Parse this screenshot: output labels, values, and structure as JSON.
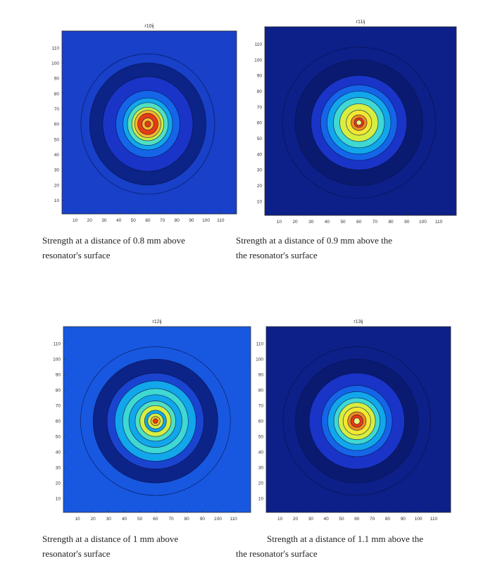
{
  "chart_data": [
    {
      "type": "heatmap",
      "title": "r10ij",
      "xticks": [
        10,
        20,
        30,
        40,
        50,
        60,
        70,
        80,
        90,
        100,
        110
      ],
      "yticks": [
        10,
        20,
        30,
        40,
        50,
        60,
        70,
        80,
        90,
        100,
        110
      ],
      "xlim": [
        1,
        121
      ],
      "ylim": [
        1,
        121
      ],
      "center": [
        60,
        60
      ],
      "levels": [
        {
          "radius": 46,
          "color": "#1840c8"
        },
        {
          "radius": 40,
          "color": "#0c2388"
        },
        {
          "radius": 31,
          "color": "#1a34c8"
        },
        {
          "radius": 22,
          "color": "#1565e8"
        },
        {
          "radius": 17,
          "color": "#12a6ea"
        },
        {
          "radius": 14,
          "color": "#50e0c0"
        },
        {
          "radius": 11,
          "color": "#c8ec48"
        },
        {
          "radius": 9,
          "color": "#f6b82a"
        },
        {
          "radius": 7,
          "color": "#e93a12"
        },
        {
          "radius": 4,
          "color": "#f6b82a"
        },
        {
          "radius": 2,
          "color": "#e93a12"
        }
      ]
    },
    {
      "type": "heatmap",
      "title": "r11ij",
      "xticks": [
        10,
        20,
        30,
        40,
        50,
        60,
        70,
        80,
        90,
        100,
        110
      ],
      "yticks": [
        10,
        20,
        30,
        40,
        50,
        60,
        70,
        80,
        90,
        100,
        110
      ],
      "xlim": [
        1,
        121
      ],
      "ylim": [
        1,
        121
      ],
      "center": [
        60,
        60
      ],
      "levels": [
        {
          "radius": 48,
          "color": "#0d1f88"
        },
        {
          "radius": 40,
          "color": "#0a1a70"
        },
        {
          "radius": 30,
          "color": "#1a34c8"
        },
        {
          "radius": 24,
          "color": "#1565e8"
        },
        {
          "radius": 20,
          "color": "#12a6ea"
        },
        {
          "radius": 16,
          "color": "#3fd8d2"
        },
        {
          "radius": 12,
          "color": "#d6ee40"
        },
        {
          "radius": 8,
          "color": "#f2e832"
        },
        {
          "radius": 5,
          "color": "#f08a1e"
        },
        {
          "radius": 3,
          "color": "#e93a12"
        },
        {
          "radius": 1.6,
          "color": "#e8ff80"
        }
      ]
    },
    {
      "type": "heatmap",
      "title": "r12ij",
      "xticks": [
        10,
        20,
        30,
        40,
        50,
        60,
        70,
        80,
        90,
        100,
        110
      ],
      "yticks": [
        10,
        20,
        30,
        40,
        50,
        60,
        70,
        80,
        90,
        100,
        110
      ],
      "xlim": [
        1,
        121
      ],
      "ylim": [
        1,
        121
      ],
      "center": [
        60,
        60
      ],
      "levels": [
        {
          "radius": 48,
          "color": "#1858e0"
        },
        {
          "radius": 40,
          "color": "#0c2388"
        },
        {
          "radius": 31,
          "color": "#1a44d0"
        },
        {
          "radius": 26,
          "color": "#12a6ea"
        },
        {
          "radius": 21,
          "color": "#3fd8d2"
        },
        {
          "radius": 17,
          "color": "#12a6ea"
        },
        {
          "radius": 13,
          "color": "#50e0c0"
        },
        {
          "radius": 10,
          "color": "#d6ee40"
        },
        {
          "radius": 7,
          "color": "#12a6ea"
        },
        {
          "radius": 5,
          "color": "#d6ee40"
        },
        {
          "radius": 3,
          "color": "#f6b82a"
        },
        {
          "radius": 1.5,
          "color": "#e93a12"
        }
      ]
    },
    {
      "type": "heatmap",
      "title": "r13ij",
      "xticks": [
        10,
        20,
        30,
        40,
        50,
        60,
        70,
        80,
        90,
        100,
        110
      ],
      "yticks": [
        10,
        20,
        30,
        40,
        50,
        60,
        70,
        80,
        90,
        100,
        110
      ],
      "xlim": [
        1,
        121
      ],
      "ylim": [
        1,
        121
      ],
      "center": [
        60,
        60
      ],
      "levels": [
        {
          "radius": 48,
          "color": "#0d1f88"
        },
        {
          "radius": 40,
          "color": "#0a1a70"
        },
        {
          "radius": 31,
          "color": "#1a34c8"
        },
        {
          "radius": 23,
          "color": "#1565e8"
        },
        {
          "radius": 19,
          "color": "#12a6ea"
        },
        {
          "radius": 15,
          "color": "#3fd8d2"
        },
        {
          "radius": 12,
          "color": "#d6ee40"
        },
        {
          "radius": 9,
          "color": "#f2e832"
        },
        {
          "radius": 6,
          "color": "#f08a1e"
        },
        {
          "radius": 4,
          "color": "#e93a12"
        },
        {
          "radius": 2,
          "color": "#e8ff80"
        }
      ]
    }
  ],
  "captions": [
    {
      "line1": "Strength at a distance of 0.8 mm above",
      "line2": "resonator's surface"
    },
    {
      "line1": "Strength at a distance of 0.9 mm above the",
      "line2": "the resonator's surface"
    },
    {
      "line1": "Strength at a distance of 1 mm above",
      "line2": "resonator's surface"
    },
    {
      "line1": "Strength at a distance of 1.1 mm above the",
      "line2": "the resonator's surface"
    }
  ]
}
